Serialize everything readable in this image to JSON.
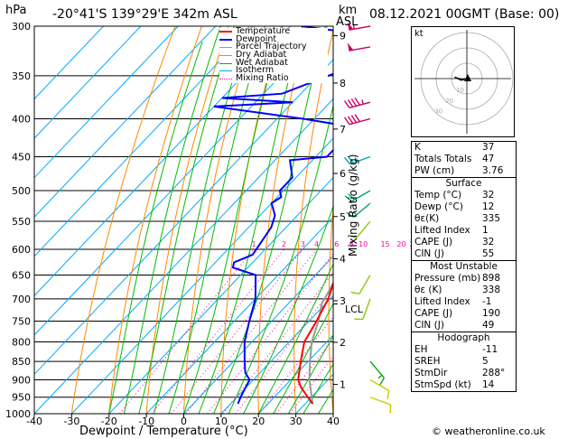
{
  "header": {
    "pressure_unit": "hPa",
    "location": "-20°41'S  139°29'E  342m  ASL",
    "km_label": "km",
    "asl_label": "ASL",
    "datetime": "08.12.2021  00GMT  (Base: 00)"
  },
  "legend": [
    "Temperature",
    "Dewpoint",
    "Parcel Trajectory",
    "Dry Adiabat",
    "Wet Adiabat",
    "Isotherm",
    "Mixing Ratio"
  ],
  "colors": {
    "temperature": "#ff0000",
    "dewpoint": "#0000ff",
    "parcel": "#999999",
    "dry_adiabat": "#ff8800",
    "wet_adiabat": "#00bb00",
    "isotherm": "#00aaff",
    "mixing_ratio": "#ff00aa"
  },
  "chart_data": {
    "type": "skew-t",
    "title": "-20°41'S 139°29'E 342m ASL",
    "xlabel": "Dewpoint / Temperature (°C)",
    "ylabel_left": "hPa",
    "ylabel_right": "Mixing Ratio (g/kg)",
    "xlim": [
      -40,
      40
    ],
    "ylim": [
      1000,
      300
    ],
    "x_ticks": [
      -40,
      -30,
      -20,
      -10,
      0,
      10,
      20,
      30,
      40
    ],
    "pressure_levels": [
      300,
      350,
      400,
      450,
      500,
      550,
      600,
      650,
      700,
      750,
      800,
      850,
      900,
      950,
      1000
    ],
    "km_ticks": [
      {
        "km": "1",
        "p": 913
      },
      {
        "km": "2",
        "p": 801
      },
      {
        "km": "3",
        "p": 704
      },
      {
        "km": "4",
        "p": 618
      },
      {
        "km": "5",
        "p": 542
      },
      {
        "km": "6",
        "p": 474
      },
      {
        "km": "7",
        "p": 413
      },
      {
        "km": "8",
        "p": 358
      },
      {
        "km": "9",
        "p": 309
      }
    ],
    "lcl_label": "LCL",
    "lcl_pressure": 711,
    "mixing_ratio_labels": [
      "1",
      "2",
      "3",
      "4",
      "6",
      "8",
      "10",
      "15",
      "20",
      "25"
    ],
    "mixing_ratio_values": [
      1,
      2,
      3,
      4,
      6,
      8,
      10,
      15,
      20,
      25
    ],
    "temperature": [
      {
        "p": 970,
        "t": 32
      },
      {
        "p": 950,
        "t": 29
      },
      {
        "p": 920,
        "t": 24.5
      },
      {
        "p": 900,
        "t": 22
      },
      {
        "p": 850,
        "t": 18
      },
      {
        "p": 800,
        "t": 14
      },
      {
        "p": 750,
        "t": 12
      },
      {
        "p": 700,
        "t": 9.5
      },
      {
        "p": 650,
        "t": 5.5
      },
      {
        "p": 600,
        "t": 1
      },
      {
        "p": 550,
        "t": -3
      },
      {
        "p": 500,
        "t": -7
      },
      {
        "p": 450,
        "t": -12
      },
      {
        "p": 400,
        "t": -18
      },
      {
        "p": 350,
        "t": -25
      },
      {
        "p": 320,
        "t": -30
      },
      {
        "p": 305,
        "t": -34
      },
      {
        "p": 300,
        "t": -35.5
      }
    ],
    "dewpoint": [
      {
        "p": 970,
        "t": 12
      },
      {
        "p": 950,
        "t": 11
      },
      {
        "p": 900,
        "t": 9
      },
      {
        "p": 880,
        "t": 6
      },
      {
        "p": 850,
        "t": 3
      },
      {
        "p": 800,
        "t": -2
      },
      {
        "p": 750,
        "t": -6
      },
      {
        "p": 700,
        "t": -10
      },
      {
        "p": 650,
        "t": -16
      },
      {
        "p": 635,
        "t": -24
      },
      {
        "p": 625,
        "t": -25
      },
      {
        "p": 610,
        "t": -22
      },
      {
        "p": 560,
        "t": -24
      },
      {
        "p": 540,
        "t": -26
      },
      {
        "p": 520,
        "t": -30
      },
      {
        "p": 510,
        "t": -29
      },
      {
        "p": 500,
        "t": -31
      },
      {
        "p": 480,
        "t": -31
      },
      {
        "p": 455,
        "t": -36
      },
      {
        "p": 450,
        "t": -27
      },
      {
        "p": 420,
        "t": -27
      },
      {
        "p": 410,
        "t": -28
      },
      {
        "p": 400,
        "t": -43
      },
      {
        "p": 385,
        "t": -70
      },
      {
        "p": 380,
        "t": -50
      },
      {
        "p": 375,
        "t": -70
      },
      {
        "p": 370,
        "t": -55
      },
      {
        "p": 330,
        "t": -39
      },
      {
        "p": 320,
        "t": -45
      },
      {
        "p": 316,
        "t": -39
      },
      {
        "p": 312,
        "t": -38
      },
      {
        "p": 300,
        "t": -67
      }
    ],
    "parcel": [
      {
        "p": 970,
        "t": 32
      },
      {
        "p": 900,
        "t": 25
      },
      {
        "p": 850,
        "t": 20.5
      },
      {
        "p": 800,
        "t": 16
      },
      {
        "p": 750,
        "t": 12.5
      },
      {
        "p": 711,
        "t": 9
      },
      {
        "p": 650,
        "t": 6
      },
      {
        "p": 600,
        "t": 3
      },
      {
        "p": 550,
        "t": -0.5
      },
      {
        "p": 500,
        "t": -4.5
      },
      {
        "p": 450,
        "t": -9.5
      },
      {
        "p": 400,
        "t": -15.5
      },
      {
        "p": 350,
        "t": -23
      },
      {
        "p": 300,
        "t": -32
      }
    ],
    "wind_barbs": [
      {
        "p": 300,
        "dir": 260,
        "spd": 55,
        "color": "#cc0066"
      },
      {
        "p": 320,
        "dir": 260,
        "spd": 50,
        "color": "#cc0066"
      },
      {
        "p": 380,
        "dir": 255,
        "spd": 45,
        "color": "#cc0066"
      },
      {
        "p": 400,
        "dir": 255,
        "spd": 40,
        "color": "#cc0066"
      },
      {
        "p": 450,
        "dir": 250,
        "spd": 25,
        "color": "#00aaaa"
      },
      {
        "p": 500,
        "dir": 240,
        "spd": 20,
        "color": "#00aa66"
      },
      {
        "p": 520,
        "dir": 230,
        "spd": 15,
        "color": "#00aa66"
      },
      {
        "p": 550,
        "dir": 220,
        "spd": 10,
        "color": "#88cc00"
      },
      {
        "p": 650,
        "dir": 210,
        "spd": 10,
        "color": "#88cc00"
      },
      {
        "p": 700,
        "dir": 200,
        "spd": 10,
        "color": "#88cc00"
      },
      {
        "p": 850,
        "dir": 140,
        "spd": 15,
        "color": "#00aa00"
      },
      {
        "p": 900,
        "dir": 120,
        "spd": 10,
        "color": "#cccc00"
      },
      {
        "p": 950,
        "dir": 110,
        "spd": 10,
        "color": "#cccc00"
      }
    ],
    "hodograph": {
      "unit_label": "kt",
      "ring_labels": [
        "10",
        "20",
        "30"
      ],
      "trace": [
        [
          0,
          0
        ],
        [
          -3,
          -1
        ],
        [
          -5,
          0
        ],
        [
          -8,
          1
        ],
        [
          -4,
          -1
        ],
        [
          1,
          0
        ]
      ]
    }
  },
  "indices": [
    {
      "label": "K",
      "value": "37"
    },
    {
      "label": "Totals Totals",
      "value": "47"
    },
    {
      "label": "PW (cm)",
      "value": "3.76"
    }
  ],
  "surface": {
    "title": "Surface",
    "rows": [
      {
        "label": "Temp (°C)",
        "value": "32"
      },
      {
        "label": "Dewp (°C)",
        "value": "12"
      },
      {
        "label": "θε(K)",
        "value": "335"
      },
      {
        "label": "Lifted Index",
        "value": "1"
      },
      {
        "label": "CAPE (J)",
        "value": "32"
      },
      {
        "label": "CIN (J)",
        "value": "55"
      }
    ]
  },
  "most_unstable": {
    "title": "Most Unstable",
    "rows": [
      {
        "label": "Pressure (mb)",
        "value": "898"
      },
      {
        "label": "θε (K)",
        "value": "338"
      },
      {
        "label": "Lifted Index",
        "value": "-1"
      },
      {
        "label": "CAPE (J)",
        "value": "190"
      },
      {
        "label": "CIN (J)",
        "value": "49"
      }
    ]
  },
  "hodograph_table": {
    "title": "Hodograph",
    "rows": [
      {
        "label": "EH",
        "value": "-11"
      },
      {
        "label": "SREH",
        "value": "5"
      },
      {
        "label": "StmDir",
        "value": "288°"
      },
      {
        "label": "StmSpd (kt)",
        "value": "14"
      }
    ]
  },
  "footer": "© weatheronline.co.uk"
}
